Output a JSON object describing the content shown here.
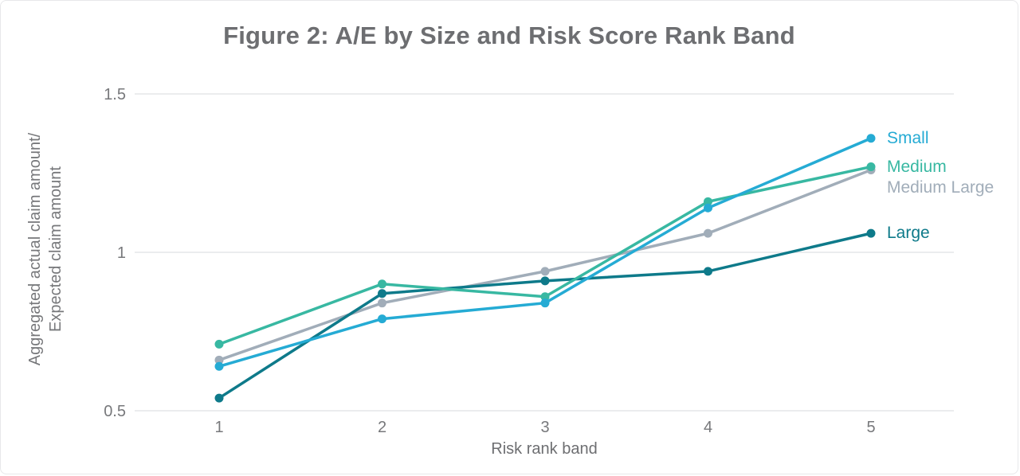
{
  "card": {
    "title": "Figure 2: A/E by Size and Risk Score Rank Band"
  },
  "axes": {
    "x_label": "Risk rank band",
    "y_label_line1": "Aggregated actual claim amount/",
    "y_label_line2": "Expected claim amount"
  },
  "colors": {
    "title_text": "#6d6e71",
    "tick_text": "#77787b",
    "gridline": "#ebecee",
    "card_border": "#e7e8ea",
    "small": "#25abd4",
    "medium": "#38b8a2",
    "medium_large": "#a1adb9",
    "large": "#0e7a8a"
  },
  "chart_data": {
    "type": "line",
    "title": "Figure 2: A/E by Size and Risk Score Rank Band",
    "xlabel": "Risk rank band",
    "ylabel": "Aggregated actual claim amount/ Expected claim amount",
    "x": [
      1,
      2,
      3,
      4,
      5
    ],
    "x_tick_labels": [
      "1",
      "2",
      "3",
      "4",
      "5"
    ],
    "y_ticks": [
      0.5,
      1,
      1.5
    ],
    "y_tick_labels": [
      "0.5",
      "1",
      "1.5"
    ],
    "ylim": [
      0.45,
      1.55
    ],
    "grid": "horizontal",
    "legend_position": "right-of-line-ends",
    "series": [
      {
        "name": "Small",
        "color": "#25abd4",
        "values": [
          0.64,
          0.79,
          0.84,
          1.14,
          1.36
        ]
      },
      {
        "name": "Medium",
        "color": "#38b8a2",
        "values": [
          0.71,
          0.9,
          0.86,
          1.16,
          1.27
        ]
      },
      {
        "name": "Medium Large",
        "color": "#a1adb9",
        "values": [
          0.66,
          0.84,
          0.94,
          1.06,
          1.26
        ]
      },
      {
        "name": "Large",
        "color": "#0e7a8a",
        "values": [
          0.54,
          0.87,
          0.91,
          0.94,
          1.06
        ]
      }
    ]
  }
}
